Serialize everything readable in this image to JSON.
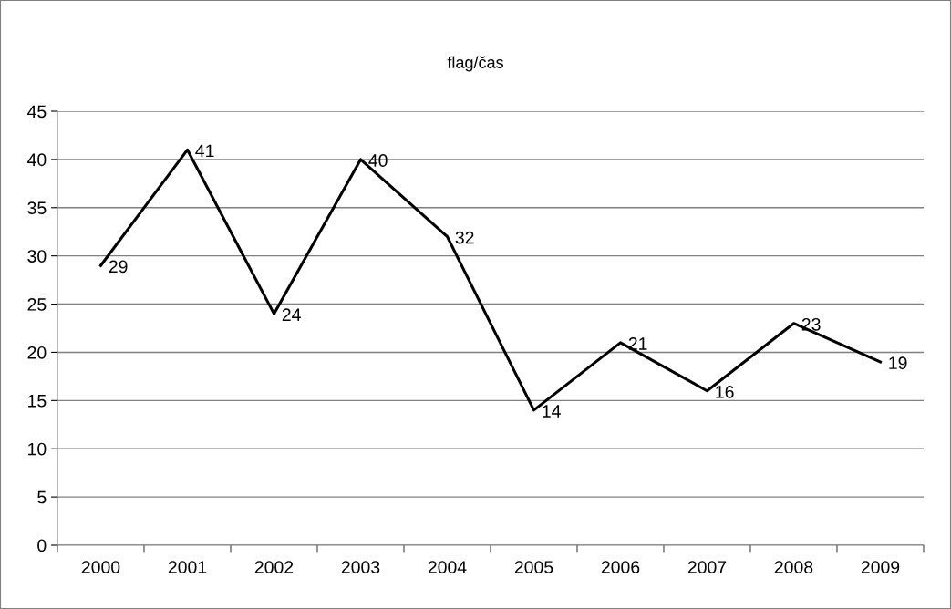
{
  "chart_data": {
    "type": "line",
    "title": "flag/čas",
    "categories": [
      "2000",
      "2001",
      "2002",
      "2003",
      "2004",
      "2005",
      "2006",
      "2007",
      "2008",
      "2009"
    ],
    "series": [
      {
        "color": "#000000",
        "values": [
          29,
          41,
          24,
          40,
          32,
          14,
          21,
          16,
          23,
          19
        ]
      }
    ],
    "data_labels": true,
    "ylim": [
      0,
      45
    ],
    "yticks": [
      0,
      5,
      10,
      15,
      20,
      25,
      30,
      35,
      40,
      45
    ],
    "grid": "y",
    "legend": false,
    "marker": "none",
    "line_style": "solid"
  }
}
